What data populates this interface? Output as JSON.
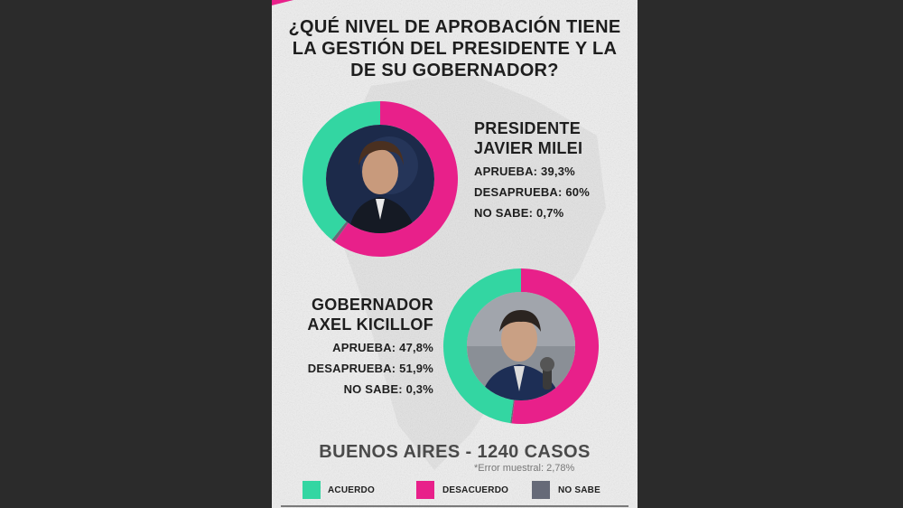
{
  "title": {
    "line1": "¿QUÉ NIVEL DE APROBACIÓN TIENE",
    "line2": "LA GESTIÓN DEL PRESIDENTE Y LA",
    "line3": "DE SU GOBERNADOR?"
  },
  "colors": {
    "acuerdo": "#33d6a2",
    "desacuerdo": "#e8208a",
    "no_sabe": "#666a78",
    "background": "#efefef",
    "frame": "#2b2b2b"
  },
  "president": {
    "role": "PRESIDENTE",
    "name": "JAVIER MILEI",
    "aprueba_label": "APRUEBA: 39,3%",
    "desaprueba_label": "DESAPRUEBA: 60%",
    "nosabe_label": "NO SABE: 0,7%"
  },
  "governor": {
    "role": "GOBERNADOR",
    "name": "AXEL KICILLOF",
    "aprueba_label": "APRUEBA: 47,8%",
    "desaprueba_label": "DESAPRUEBA: 51,9%",
    "nosabe_label": "NO SABE: 0,3%"
  },
  "footer": {
    "title": "BUENOS AIRES - 1240 CASOS",
    "error": "*Error muestral: 2,78%"
  },
  "legend": {
    "acuerdo": "ACUERDO",
    "desacuerdo": "DESACUERDO",
    "no_sabe": "NO SABE"
  },
  "chart_data": [
    {
      "type": "pie",
      "title": "PRESIDENTE JAVIER MILEI",
      "categories": [
        "APRUEBA",
        "DESAPRUEBA",
        "NO SABE"
      ],
      "values": [
        39.3,
        60,
        0.7
      ],
      "colors": [
        "#33d6a2",
        "#e8208a",
        "#666a78"
      ]
    },
    {
      "type": "pie",
      "title": "GOBERNADOR AXEL KICILLOF",
      "categories": [
        "APRUEBA",
        "DESAPRUEBA",
        "NO SABE"
      ],
      "values": [
        47.8,
        51.9,
        0.3
      ],
      "colors": [
        "#33d6a2",
        "#e8208a",
        "#666a78"
      ]
    }
  ]
}
